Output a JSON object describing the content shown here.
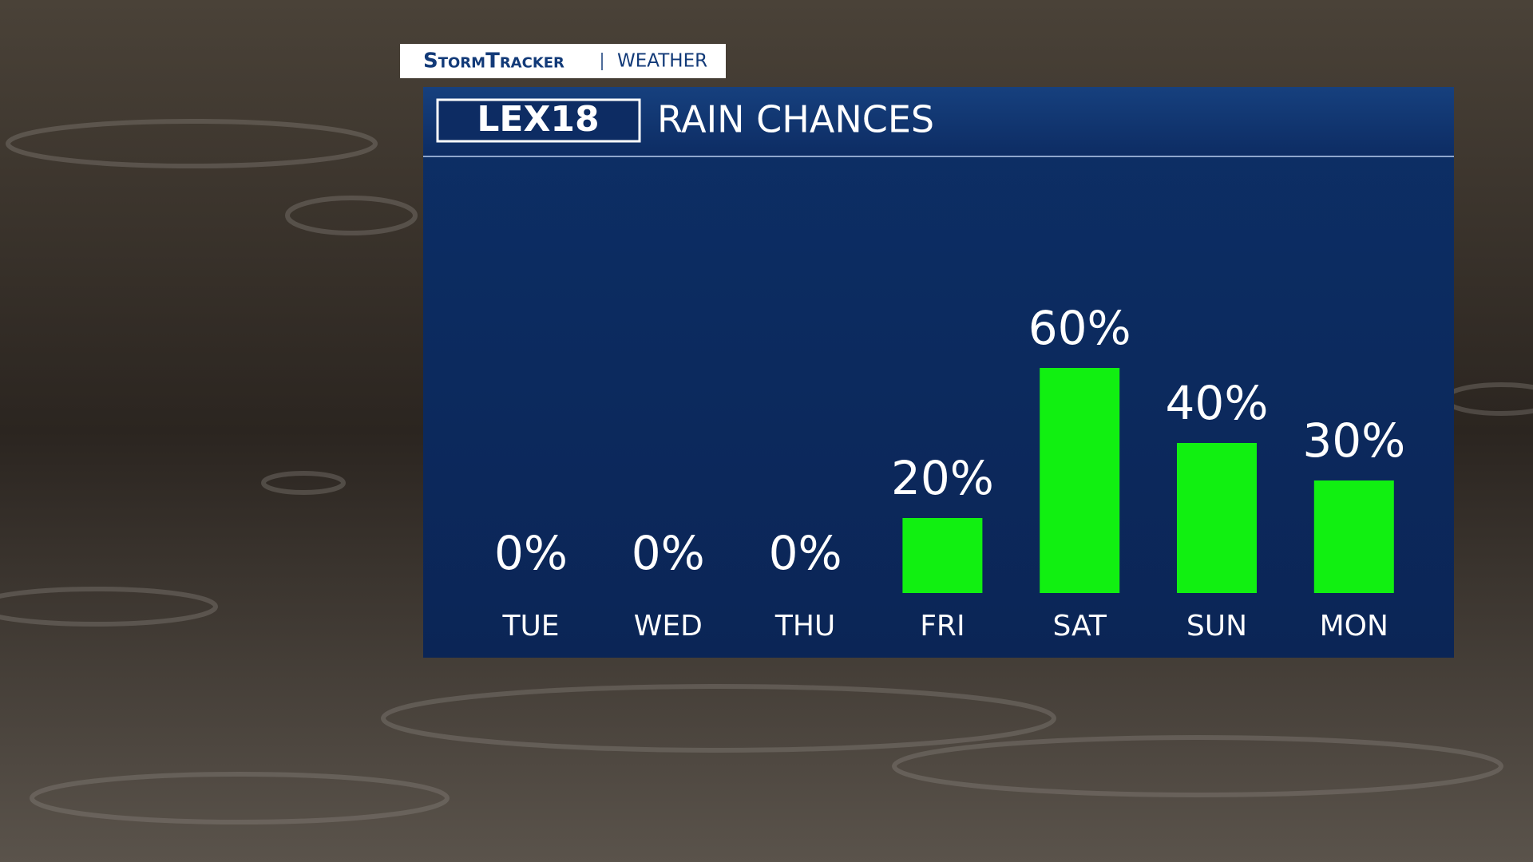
{
  "header": {
    "brand": "StormTracker",
    "section": "WEATHER",
    "logo": "LEX18"
  },
  "chart_data": {
    "type": "bar",
    "title": "RAIN CHANCES",
    "categories": [
      "TUE",
      "WED",
      "THU",
      "FRI",
      "SAT",
      "SUN",
      "MON"
    ],
    "values": [
      0,
      0,
      0,
      20,
      60,
      40,
      30
    ],
    "value_labels": [
      "0%",
      "0%",
      "0%",
      "20%",
      "60%",
      "40%",
      "30%"
    ],
    "color": "#11f011"
  }
}
